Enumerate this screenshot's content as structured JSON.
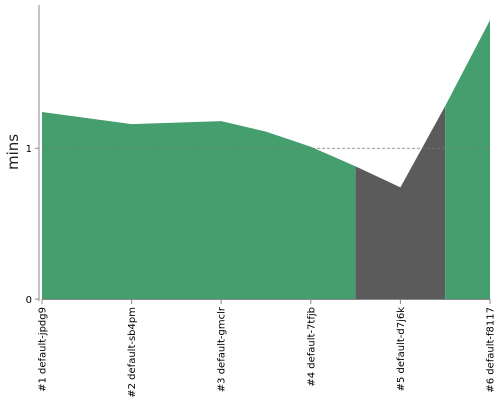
{
  "chart_data": {
    "type": "area",
    "ylabel": "mins",
    "xlabel": "",
    "title": "",
    "categories": [
      "#1 default-jpdg9",
      "#2 default-sb4pm",
      "#3 default-gmclr",
      "#4 default-7tfjb",
      "#5 default-d7j6k",
      "#6 default-f8117"
    ],
    "values": [
      1.24,
      1.16,
      1.18,
      1.01,
      0.74,
      1.85
    ],
    "interpolated_points": [
      {
        "x": 2.5,
        "y": 1.11
      },
      {
        "x": 3.5,
        "y": 0.88
      },
      {
        "x": 4.5,
        "y": 1.28
      }
    ],
    "highlight_range": {
      "from": 3.5,
      "to": 4.5
    },
    "reference_line": {
      "y": 1,
      "style": "dashed"
    },
    "yticks": [
      0,
      1
    ],
    "ylim": [
      0,
      1.95
    ],
    "colors": {
      "area": "#449e6e",
      "highlight": "#5b5b5b",
      "reference_line": "#777777",
      "axis": "#888888"
    }
  }
}
